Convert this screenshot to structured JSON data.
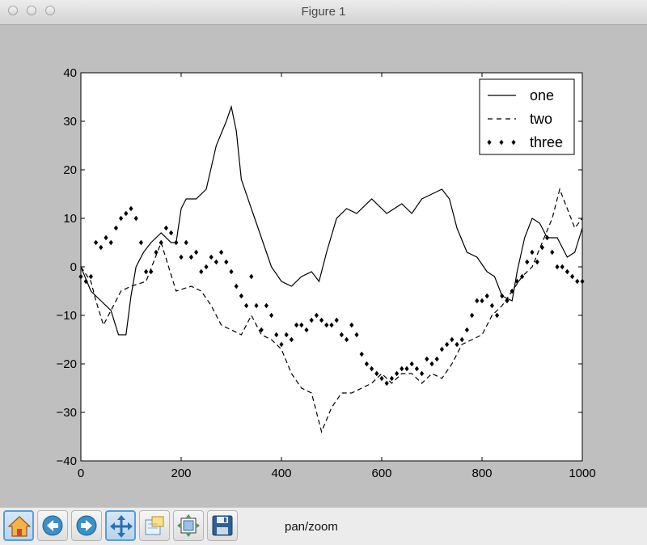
{
  "window": {
    "title": "Figure 1"
  },
  "toolbar": {
    "buttons": [
      {
        "name": "home-button",
        "icon": "home-icon",
        "active": true
      },
      {
        "name": "back-button",
        "icon": "arrow-left-icon"
      },
      {
        "name": "forward-button",
        "icon": "arrow-right-icon"
      },
      {
        "name": "pan-button",
        "icon": "move-icon"
      },
      {
        "name": "zoom-button",
        "icon": "zoom-rect-icon"
      },
      {
        "name": "subplots-button",
        "icon": "subplots-icon"
      },
      {
        "name": "save-button",
        "icon": "floppy-disk-icon"
      }
    ],
    "status": "pan/zoom"
  },
  "chart_data": {
    "type": "line",
    "xlim": [
      0,
      1000
    ],
    "ylim": [
      -40,
      40
    ],
    "xticks": [
      0,
      200,
      400,
      600,
      800,
      1000
    ],
    "yticks": [
      40,
      30,
      20,
      10,
      0,
      -10,
      -20,
      -30,
      -40
    ],
    "xtick_labels": [
      "0",
      "200",
      "400",
      "600",
      "800",
      "1000"
    ],
    "ytick_labels": [
      "40",
      "30",
      "20",
      "10",
      "0",
      "−10",
      "−20",
      "−30",
      "−40"
    ],
    "legend": {
      "placement": "top-right",
      "entries": [
        "one",
        "two",
        "three"
      ]
    },
    "series": [
      {
        "name": "one",
        "style": "solid",
        "x": [
          0,
          20,
          40,
          60,
          75,
          90,
          100,
          110,
          125,
          140,
          160,
          180,
          190,
          200,
          210,
          230,
          250,
          270,
          290,
          300,
          310,
          320,
          340,
          360,
          380,
          400,
          420,
          440,
          460,
          475,
          490,
          510,
          530,
          550,
          580,
          610,
          640,
          660,
          680,
          700,
          720,
          735,
          750,
          770,
          790,
          810,
          825,
          840,
          860,
          870,
          885,
          900,
          915,
          930,
          950,
          970,
          985,
          1000
        ],
        "y": [
          0,
          -5,
          -7,
          -9,
          -14,
          -14,
          -6,
          0,
          3,
          5,
          7,
          5,
          5,
          12,
          14,
          14,
          16,
          25,
          30,
          33,
          28,
          18,
          12,
          6,
          0,
          -3,
          -4,
          -2,
          -1,
          -3,
          3,
          10,
          12,
          11,
          14,
          11,
          13,
          11,
          14,
          15,
          16,
          14,
          8,
          3,
          2,
          -1,
          -2,
          -6,
          -7,
          -1,
          6,
          10,
          9,
          6,
          6,
          2,
          3,
          8
        ]
      },
      {
        "name": "two",
        "style": "dashed",
        "x": [
          0,
          20,
          30,
          45,
          60,
          80,
          100,
          130,
          160,
          190,
          220,
          240,
          260,
          280,
          300,
          320,
          340,
          360,
          380,
          400,
          420,
          440,
          460,
          470,
          480,
          500,
          520,
          540,
          560,
          580,
          600,
          620,
          640,
          660,
          680,
          700,
          720,
          740,
          760,
          780,
          800,
          820,
          840,
          860,
          880,
          900,
          920,
          940,
          955,
          970,
          985,
          1000
        ],
        "y": [
          0,
          -3,
          -7,
          -12,
          -9,
          -5,
          -4,
          -3,
          5,
          -5,
          -4,
          -5,
          -8,
          -12,
          -13,
          -14,
          -10,
          -14,
          -15,
          -17,
          -22,
          -25,
          -26,
          -30,
          -34,
          -29,
          -26,
          -26,
          -25,
          -24,
          -22,
          -24,
          -22,
          -22,
          -24,
          -22,
          -23,
          -20,
          -16,
          -15,
          -14,
          -10,
          -8,
          -5,
          -2,
          0,
          5,
          10,
          16,
          12,
          8,
          10
        ]
      },
      {
        "name": "three",
        "style": "markers",
        "x": [
          0,
          10,
          20,
          30,
          40,
          50,
          60,
          70,
          80,
          90,
          100,
          110,
          120,
          130,
          140,
          150,
          160,
          170,
          180,
          190,
          200,
          210,
          220,
          230,
          240,
          250,
          260,
          270,
          280,
          290,
          300,
          310,
          320,
          330,
          340,
          350,
          360,
          370,
          380,
          390,
          400,
          410,
          420,
          430,
          440,
          450,
          460,
          470,
          480,
          490,
          500,
          510,
          520,
          530,
          540,
          550,
          560,
          570,
          580,
          590,
          600,
          610,
          620,
          630,
          640,
          650,
          660,
          670,
          680,
          690,
          700,
          710,
          720,
          730,
          740,
          750,
          760,
          770,
          780,
          790,
          800,
          810,
          820,
          830,
          840,
          850,
          860,
          870,
          880,
          890,
          900,
          910,
          920,
          930,
          940,
          950,
          960,
          970,
          980,
          990,
          1000
        ],
        "y": [
          -2,
          -3,
          -2,
          5,
          4,
          6,
          5,
          8,
          10,
          11,
          12,
          10,
          5,
          -1,
          -1,
          3,
          5,
          8,
          7,
          5,
          2,
          5,
          2,
          3,
          -1,
          0,
          2,
          1,
          3,
          1,
          -1,
          -4,
          -6,
          -8,
          -2,
          -8,
          -13,
          -8,
          -10,
          -14,
          -16,
          -14,
          -15,
          -12,
          -12,
          -13,
          -11,
          -10,
          -11,
          -12,
          -12,
          -11,
          -14,
          -15,
          -12,
          -14,
          -18,
          -20,
          -21,
          -22,
          -23,
          -24,
          -23,
          -22,
          -21,
          -21,
          -20,
          -21,
          -22,
          -19,
          -20,
          -19,
          -17,
          -16,
          -15,
          -16,
          -15,
          -13,
          -10,
          -7,
          -7,
          -6,
          -8,
          -10,
          -6,
          -7,
          -5,
          -3,
          -2,
          1,
          3,
          1,
          4,
          6,
          3,
          0,
          0,
          -1,
          -2,
          -3,
          -3
        ]
      }
    ]
  }
}
